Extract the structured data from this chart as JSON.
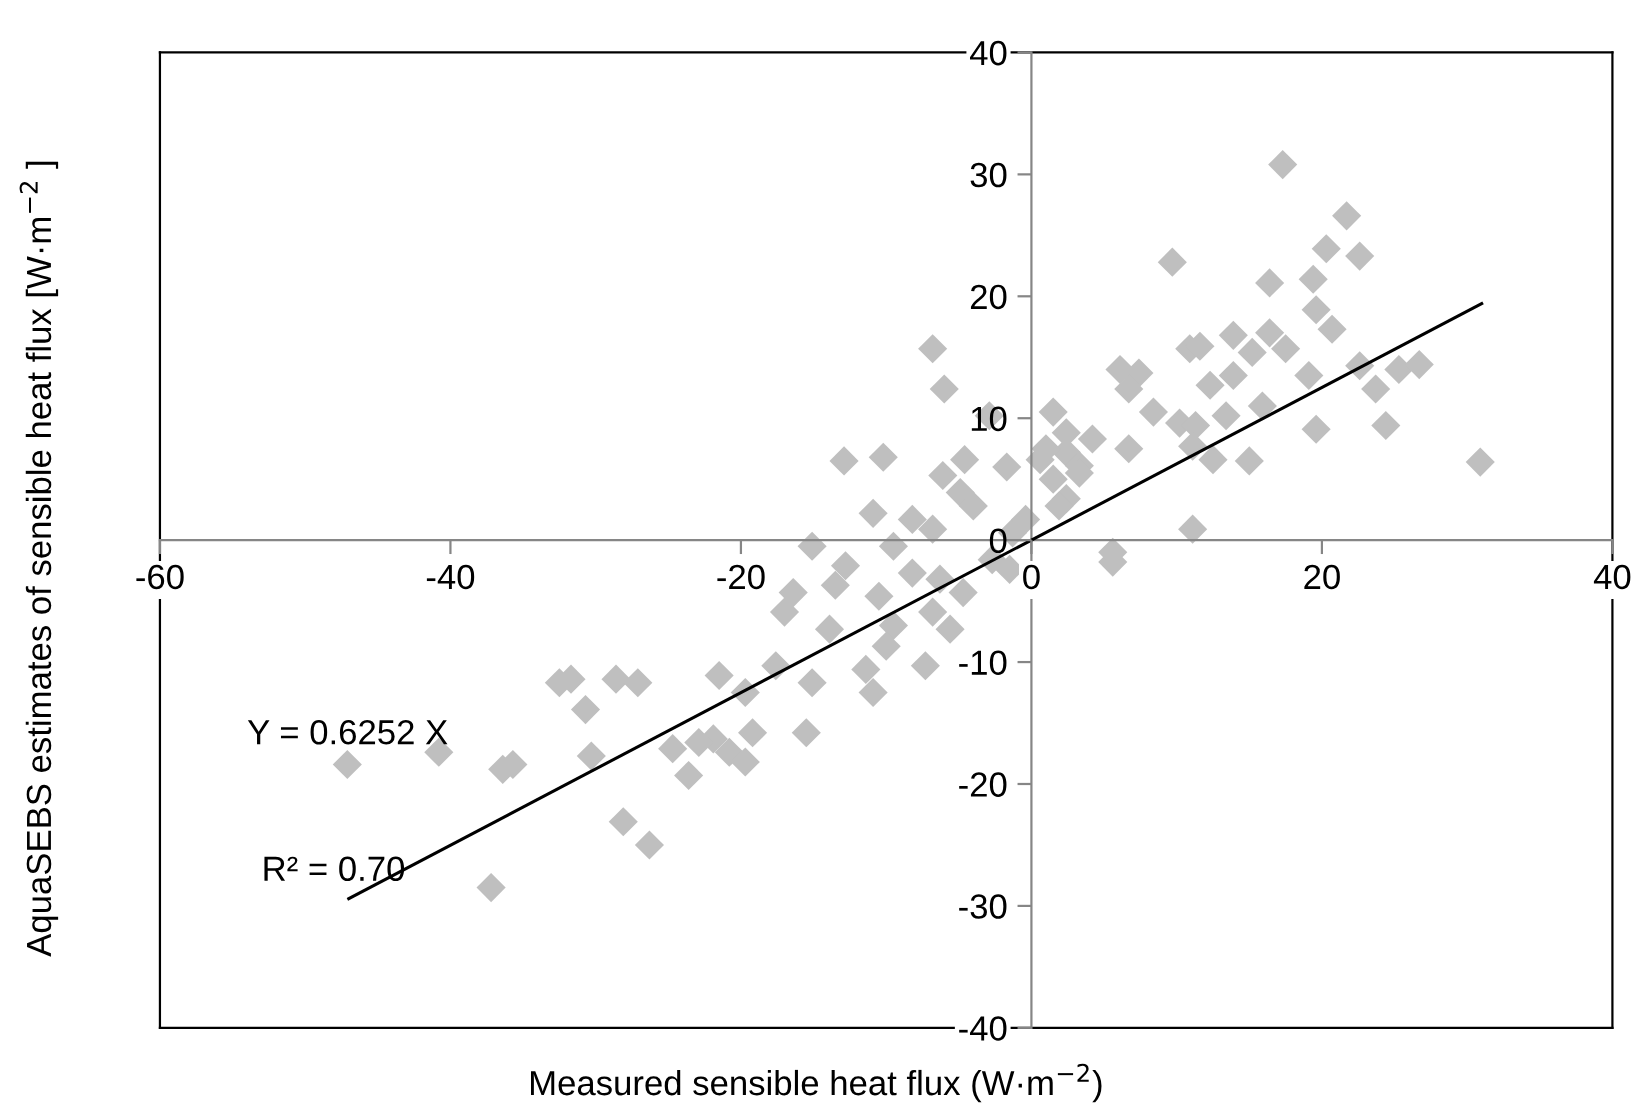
{
  "chart_data": {
    "type": "scatter",
    "xlabel": "Measured sensible heat flux (W·m$^{−2}$)",
    "ylabel": "AquaSEBS estimates of sensible heat flux [W·m$^{−2}$ ]",
    "annotations": [
      "Y = 0.6252 X",
      "R² = 0.70"
    ],
    "xlim": [
      -60,
      40
    ],
    "xticks": [
      -60,
      -40,
      -20,
      0,
      20,
      40
    ],
    "ylim": [
      -40,
      40
    ],
    "yticks": [
      -40,
      -30,
      -20,
      -10,
      0,
      10,
      20,
      30,
      40
    ],
    "grid": false,
    "marker": "diamond",
    "series": [
      {
        "color": "#bfbfbf",
        "x": [
          -47.1,
          -40.8,
          -36.4,
          -35.7,
          -37.2,
          -32.5,
          -31.7,
          -30.7,
          -30.3,
          -28.6,
          -27.1,
          -28.1,
          -26.3,
          -21.5,
          -19.7,
          -24.7,
          -23.6,
          -21.9,
          -20.8,
          -19.7,
          -19.2,
          -6.8,
          -6.0,
          -2.9,
          -12.9,
          -10.2,
          -6.1,
          -4.6,
          -1.7,
          -4.9,
          -4.0,
          -10.9,
          -8.2,
          -6.8,
          -1.3,
          -15.1,
          -9.5,
          -12.8,
          -13.5,
          -16.4,
          -17.0,
          -10.5,
          -8.2,
          -6.3,
          -4.7,
          -2.7,
          -1.5,
          -9.5,
          -6.8,
          -5.6,
          -13.9,
          -10.0,
          -11.4,
          -10.9,
          -7.3,
          -17.6,
          -15.1,
          -15.5,
          -22.9,
          1.5,
          2.4,
          4.2,
          1.5,
          3.3,
          5.6,
          0.6,
          2.4,
          -0.4,
          17.3,
          21.7,
          9.7,
          16.4,
          20.3,
          22.6,
          19.4,
          19.6,
          20.7,
          16.4,
          13.9,
          15.2,
          17.5,
          10.9,
          11.6,
          6.1,
          7.4,
          6.7,
          12.3,
          13.9,
          19.1,
          22.6,
          23.7,
          25.3,
          26.7,
          8.4,
          10.2,
          13.4,
          15.9,
          19.6,
          24.4,
          11.3,
          11.1,
          12.5,
          15.0,
          30.9,
          6.7,
          2.4,
          3.3,
          1.0,
          11.1,
          5.6,
          1.9
        ],
        "values": [
          -18.4,
          -17.4,
          -18.8,
          -18.4,
          -28.5,
          -11.7,
          -11.4,
          -13.9,
          -17.7,
          -11.4,
          -11.7,
          -23.1,
          -25.0,
          -11.1,
          -12.5,
          -17.1,
          -19.3,
          -16.3,
          -17.4,
          -18.2,
          -15.8,
          15.7,
          12.4,
          10.2,
          6.5,
          6.8,
          5.3,
          6.6,
          6.0,
          3.9,
          2.8,
          2.2,
          1.7,
          0.9,
          0.6,
          -0.5,
          -0.5,
          -2.1,
          -3.7,
          -4.3,
          -5.9,
          -4.6,
          -2.7,
          -3.2,
          -4.3,
          -1.6,
          -2.4,
          -7.0,
          -5.9,
          -7.3,
          -7.3,
          -8.7,
          -10.6,
          -12.5,
          -10.3,
          -10.3,
          -11.7,
          -15.8,
          -16.6,
          10.5,
          7.2,
          8.3,
          5.0,
          6.1,
          -1.8,
          6.6,
          3.4,
          1.7,
          30.8,
          26.6,
          22.8,
          21.1,
          23.9,
          23.3,
          21.4,
          18.9,
          17.3,
          17.0,
          16.8,
          15.4,
          15.7,
          15.7,
          15.9,
          14.0,
          13.7,
          12.4,
          12.7,
          13.5,
          13.5,
          14.3,
          12.4,
          14.0,
          14.4,
          10.5,
          9.6,
          10.2,
          11.0,
          9.1,
          9.4,
          9.4,
          7.7,
          6.6,
          6.5,
          6.4,
          7.5,
          8.8,
          5.5,
          7.5,
          0.9,
          -1.0,
          2.8
        ]
      },
      {
        "type": "line",
        "marker": "none",
        "color": "#000000",
        "x": [
          -47,
          31
        ],
        "values": [
          -29.4,
          19.4
        ]
      }
    ]
  }
}
